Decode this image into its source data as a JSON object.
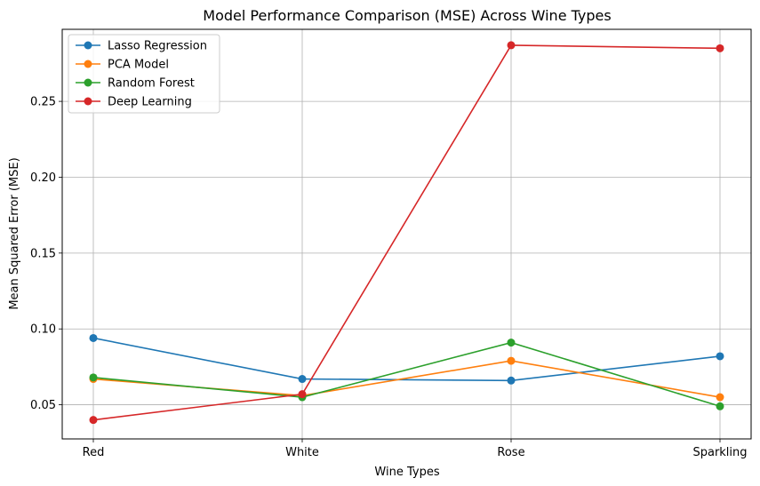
{
  "chart_data": {
    "type": "line",
    "title": "Model Performance Comparison (MSE) Across Wine Types",
    "xlabel": "Wine Types",
    "ylabel": "Mean Squared Error (MSE)",
    "categories": [
      "Red",
      "White",
      "Rose",
      "Sparkling"
    ],
    "ylim": [
      0.0275,
      0.2975
    ],
    "yticks": [
      0.05,
      0.1,
      0.15,
      0.2,
      0.25
    ],
    "ytick_labels": [
      "0.05",
      "0.10",
      "0.15",
      "0.20",
      "0.25"
    ],
    "grid": true,
    "legend_position": "top-left",
    "series": [
      {
        "name": "Lasso Regression",
        "color": "#1f77b4",
        "values": [
          0.094,
          0.067,
          0.066,
          0.082
        ]
      },
      {
        "name": "PCA Model",
        "color": "#ff7f0e",
        "values": [
          0.067,
          0.056,
          0.079,
          0.055
        ]
      },
      {
        "name": "Random Forest",
        "color": "#2ca02c",
        "values": [
          0.068,
          0.055,
          0.091,
          0.049
        ]
      },
      {
        "name": "Deep Learning",
        "color": "#d62728",
        "values": [
          0.04,
          0.057,
          0.287,
          0.285
        ]
      }
    ]
  }
}
